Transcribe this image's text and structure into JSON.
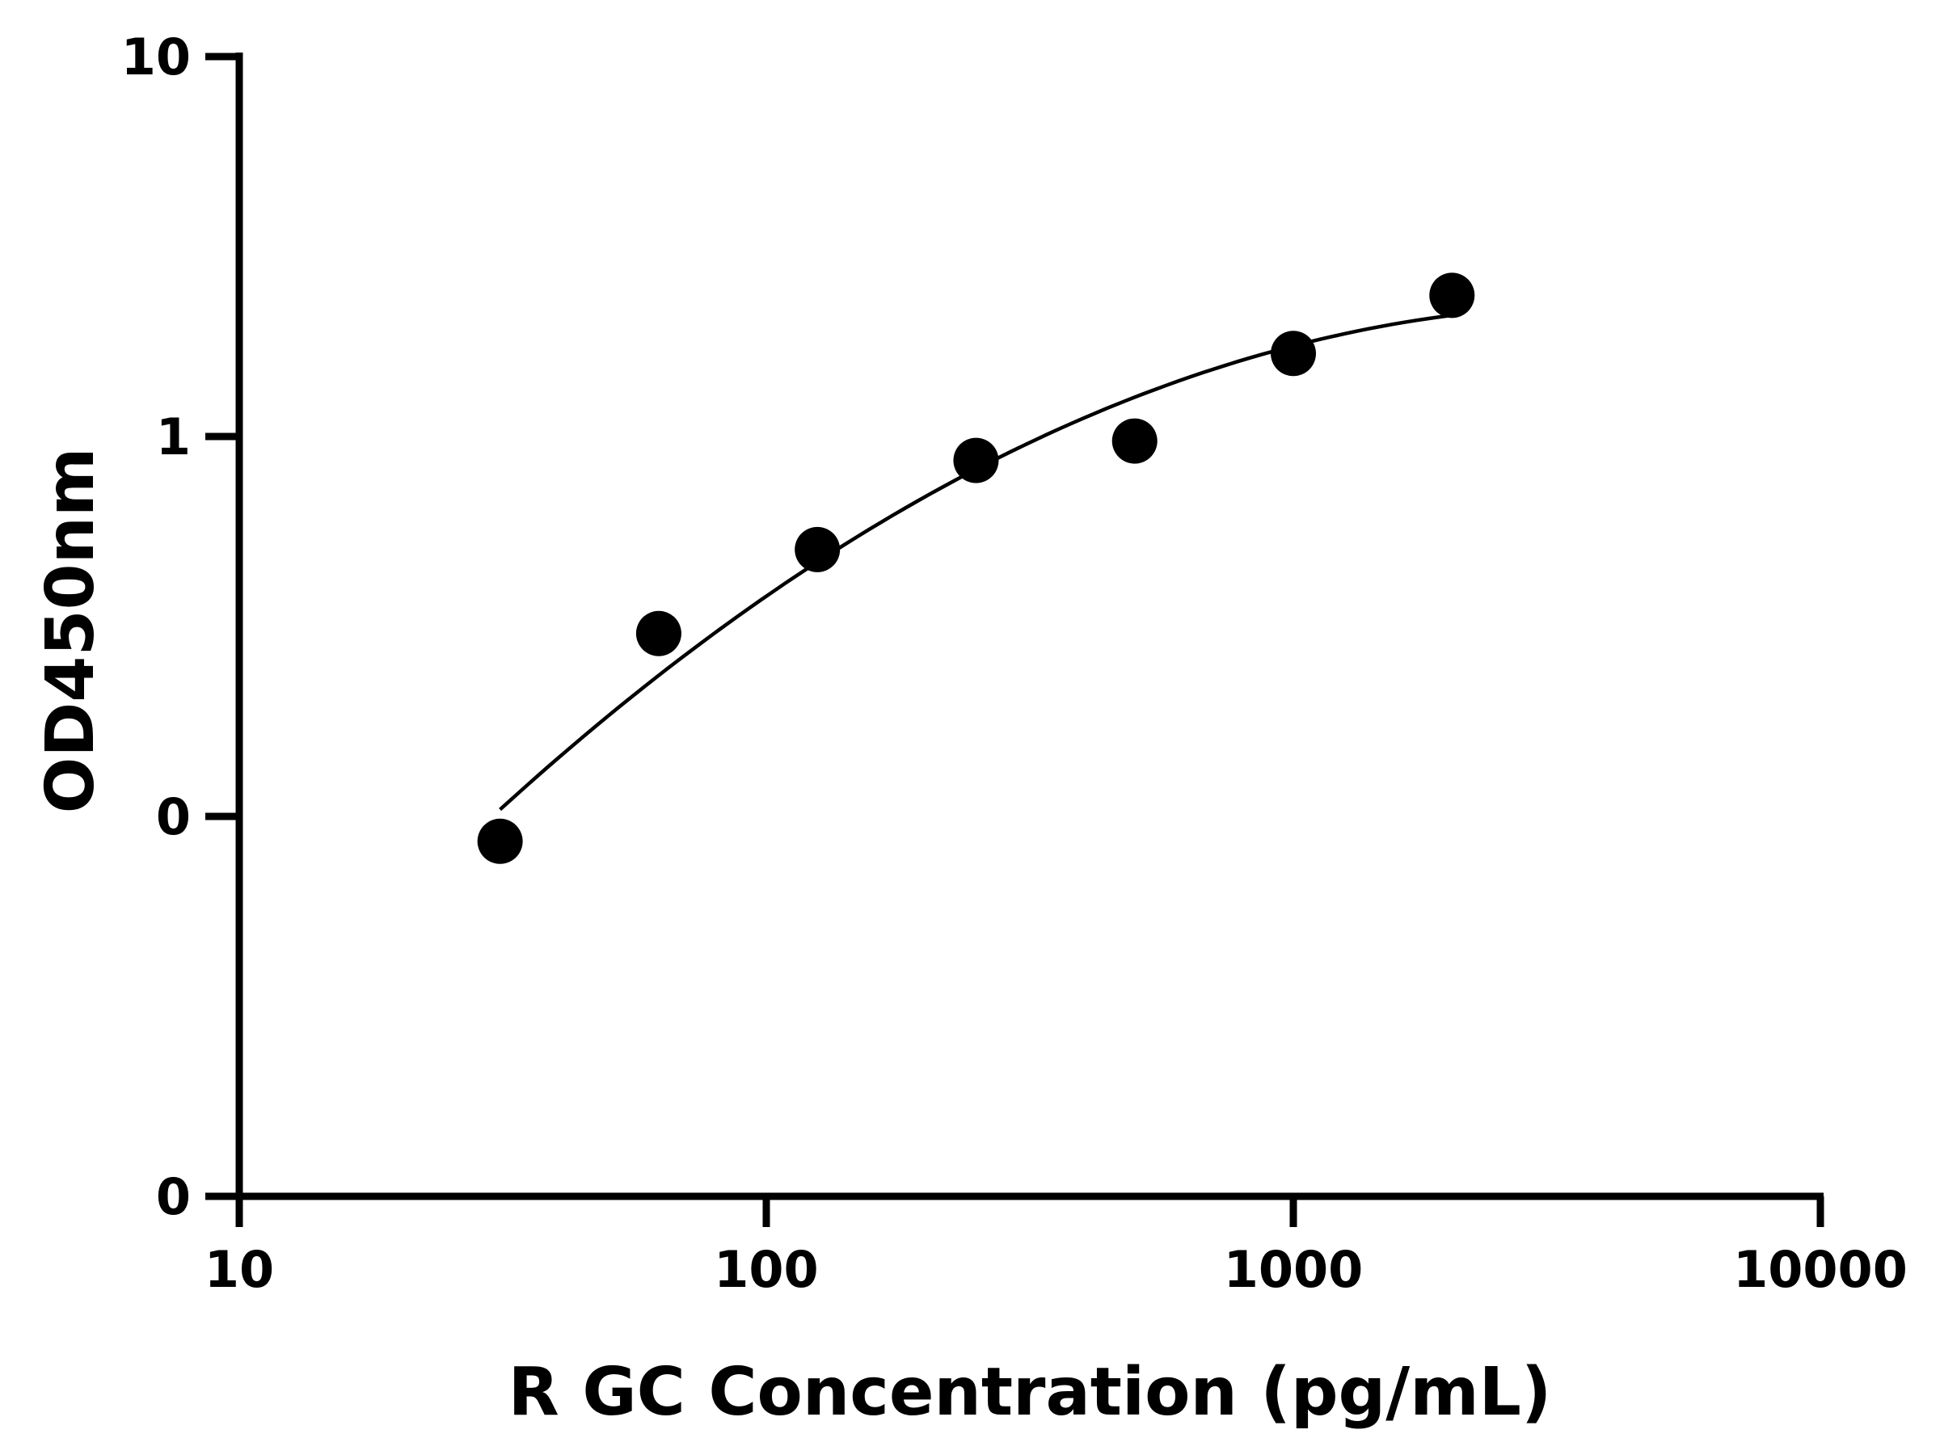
{
  "chart_data": {
    "type": "scatter",
    "title": "",
    "xlabel": "R GC Concentration (pg/mL)",
    "ylabel": "OD450nm",
    "x_scale": "log",
    "y_scale": "custom-broken",
    "xlim": [
      10,
      10000
    ],
    "x_ticks": [
      10,
      100,
      1000,
      10000
    ],
    "x_tick_labels": [
      "10",
      "100",
      "1000",
      "10000"
    ],
    "y_ticks": [
      0,
      0.1,
      1,
      10
    ],
    "y_tick_labels": [
      "0",
      "0",
      "1",
      "10"
    ],
    "grid": false,
    "legend": "none",
    "marker_color": "#000000",
    "series": [
      {
        "x": [
          31.25,
          62.5,
          125,
          250,
          500,
          1000,
          2000
        ],
        "y": [
          0.086,
          0.303,
          0.504,
          0.865,
          0.973,
          1.654,
          2.353
        ]
      }
    ]
  }
}
